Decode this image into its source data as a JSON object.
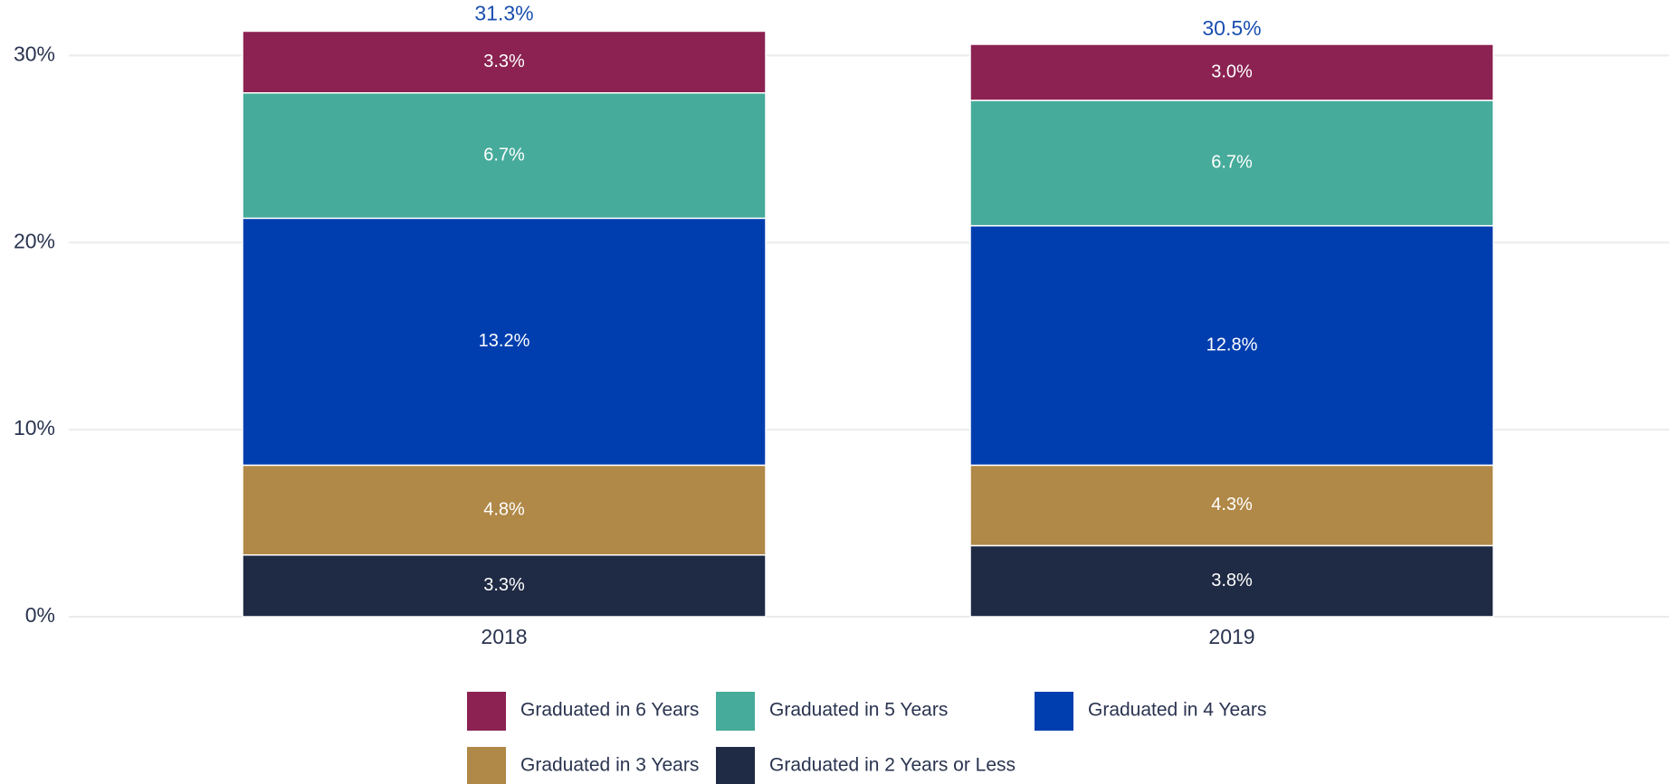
{
  "chart_data": {
    "type": "stacked_bar",
    "categories": [
      "2018",
      "2019"
    ],
    "series": [
      {
        "name": "Graduated in 6 Years",
        "color": "#8b2252",
        "values": [
          3.3,
          3.0
        ],
        "value_labels": [
          "3.3%",
          "3.0%"
        ]
      },
      {
        "name": "Graduated in 5 Years",
        "color": "#46ab9a",
        "values": [
          6.7,
          6.7
        ],
        "value_labels": [
          "6.7%",
          "6.7%"
        ]
      },
      {
        "name": "Graduated in 4 Years",
        "color": "#003eaf",
        "values": [
          13.2,
          12.8
        ],
        "value_labels": [
          "13.2%",
          "12.8%"
        ]
      },
      {
        "name": "Graduated in 3 Years",
        "color": "#b08847",
        "values": [
          4.8,
          4.3
        ],
        "value_labels": [
          "4.8%",
          "4.3%"
        ]
      },
      {
        "name": "Graduated in 2 Years or Less",
        "color": "#1f2a44",
        "values": [
          3.3,
          3.8
        ],
        "value_labels": [
          "3.3%",
          "3.8%"
        ]
      }
    ],
    "totals": [
      31.3,
      30.5
    ],
    "total_labels": [
      "31.3%",
      "30.5%"
    ],
    "total_color": "#1a4fb0",
    "ylim": [
      0,
      32
    ],
    "yticks": [
      {
        "value": 0,
        "label": "0%"
      },
      {
        "value": 10,
        "label": "10%"
      },
      {
        "value": 20,
        "label": "20%"
      },
      {
        "value": 30,
        "label": "30%"
      }
    ],
    "grid": true,
    "legend": "bottom"
  }
}
